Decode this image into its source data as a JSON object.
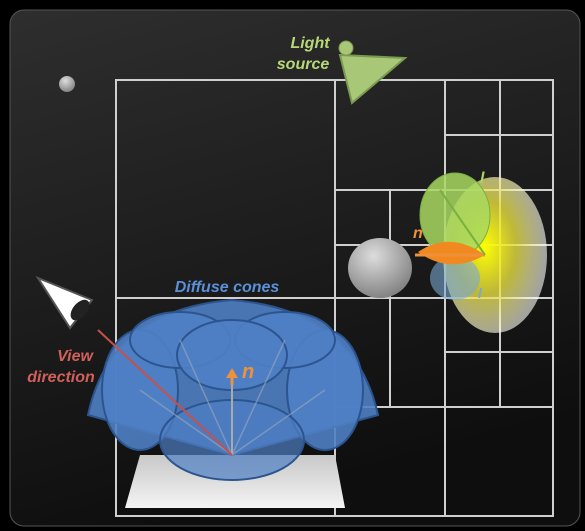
{
  "labels": {
    "light_source": [
      "Light",
      "source"
    ],
    "diffuse_cones": "Diffuse cones",
    "view_direction": [
      "View",
      "direction"
    ],
    "normal_main": "n",
    "normal_small": "n",
    "light_dir_top": "l",
    "light_dir_bottom": "l"
  }
}
